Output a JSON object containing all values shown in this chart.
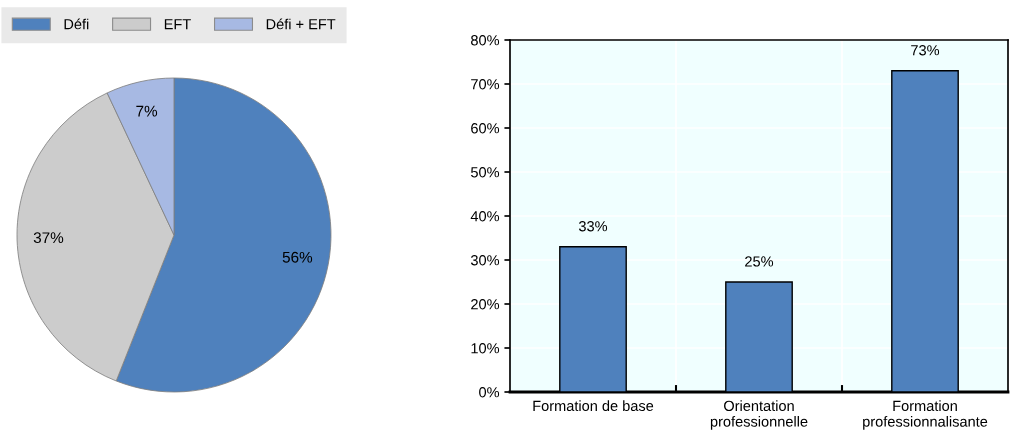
{
  "chart_data": [
    {
      "type": "pie",
      "categories": [
        "Défi",
        "EFT",
        "Défi + EFT"
      ],
      "values": [
        56,
        37,
        7
      ],
      "colors": [
        "#4f81bd",
        "#cccccc",
        "#a7b9e3"
      ],
      "value_labels": [
        "56%",
        "37%",
        "7%"
      ],
      "legend": "top"
    },
    {
      "type": "bar",
      "categories": [
        "Formation de base",
        "Orientation\nprofessionnelle",
        "Formation\nprofessionnalisante"
      ],
      "values": [
        33,
        25,
        73
      ],
      "color": "#4f81bd",
      "value_labels": [
        "33%",
        "25%",
        "73%"
      ],
      "ylim": [
        0,
        80
      ],
      "yticks": [
        {
          "value": 0,
          "label": "0%"
        },
        {
          "value": 10,
          "label": "10%"
        },
        {
          "value": 20,
          "label": "20%"
        },
        {
          "value": 30,
          "label": "30%"
        },
        {
          "value": 40,
          "label": "40%"
        },
        {
          "value": 50,
          "label": "50%"
        },
        {
          "value": 60,
          "label": "60%"
        },
        {
          "value": 70,
          "label": "70%"
        },
        {
          "value": 80,
          "label": "80%"
        }
      ],
      "grid": true
    }
  ]
}
